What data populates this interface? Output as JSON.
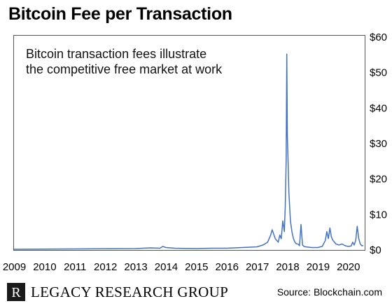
{
  "chart_data": {
    "type": "line",
    "title": "Bitcoin Fee per Transaction",
    "annotation": [
      "Bitcoin transaction fees illustrate",
      "the competitive free market at work"
    ],
    "source": "Source: Blockchain.com",
    "xlim": [
      2009.0,
      2020.5
    ],
    "ylim": [
      0,
      60
    ],
    "x_ticks": [
      2009,
      2010,
      2011,
      2012,
      2013,
      2014,
      2015,
      2016,
      2017,
      2018,
      2019,
      2020
    ],
    "x_tick_labels": [
      "2009",
      "2010",
      "2011",
      "2012",
      "2013",
      "2014",
      "2015",
      "2016",
      "2017",
      "2018",
      "2019",
      "2020"
    ],
    "y_ticks": [
      0,
      10,
      20,
      30,
      40,
      50,
      60
    ],
    "y_tick_labels": [
      "$0",
      "$10",
      "$20",
      "$30",
      "$40",
      "$50",
      "$60"
    ],
    "y_axis_side": "right",
    "grid": false,
    "line_color": "#4472c4",
    "series": [
      {
        "x": [
          2009.0,
          2010.0,
          2011.0,
          2012.0,
          2013.0,
          2013.5,
          2013.8,
          2013.9,
          2014.0,
          2014.3,
          2015.0,
          2015.5,
          2016.0,
          2016.5,
          2017.0,
          2017.2,
          2017.35,
          2017.45,
          2017.5,
          2017.6,
          2017.65,
          2017.7,
          2017.75,
          2017.8,
          2017.85,
          2017.9,
          2017.93,
          2017.96,
          2017.98,
          2018.0,
          2018.02,
          2018.05,
          2018.1,
          2018.15,
          2018.2,
          2018.25,
          2018.3,
          2018.35,
          2018.4,
          2018.45,
          2018.5,
          2018.55,
          2018.6,
          2018.7,
          2018.8,
          2019.0,
          2019.15,
          2019.25,
          2019.3,
          2019.35,
          2019.4,
          2019.45,
          2019.5,
          2019.55,
          2019.6,
          2019.7,
          2019.8,
          2019.9,
          2020.0,
          2020.1,
          2020.15,
          2020.2,
          2020.25,
          2020.3,
          2020.35,
          2020.4,
          2020.45,
          2020.5
        ],
        "y": [
          0.0,
          0.05,
          0.1,
          0.15,
          0.2,
          0.4,
          0.3,
          0.8,
          0.5,
          0.3,
          0.2,
          0.3,
          0.3,
          0.5,
          0.7,
          1.2,
          2.0,
          4.0,
          5.5,
          3.0,
          2.5,
          2.0,
          4.0,
          3.0,
          8.0,
          5.0,
          12.0,
          25.0,
          55.0,
          32.0,
          26.0,
          16.0,
          8.0,
          5.0,
          3.0,
          2.0,
          1.5,
          1.5,
          1.0,
          7.0,
          1.2,
          0.8,
          0.7,
          0.6,
          0.5,
          0.5,
          0.8,
          2.5,
          5.0,
          3.0,
          6.0,
          3.5,
          2.5,
          2.0,
          1.5,
          1.2,
          1.5,
          1.0,
          0.8,
          0.9,
          2.0,
          1.2,
          2.5,
          6.5,
          3.0,
          1.5,
          1.0,
          1.0
        ]
      }
    ]
  },
  "footer": {
    "logo_letter": "R",
    "brand": "LEGACY RESEARCH GROUP",
    "source": "Source: Blockchain.com"
  }
}
